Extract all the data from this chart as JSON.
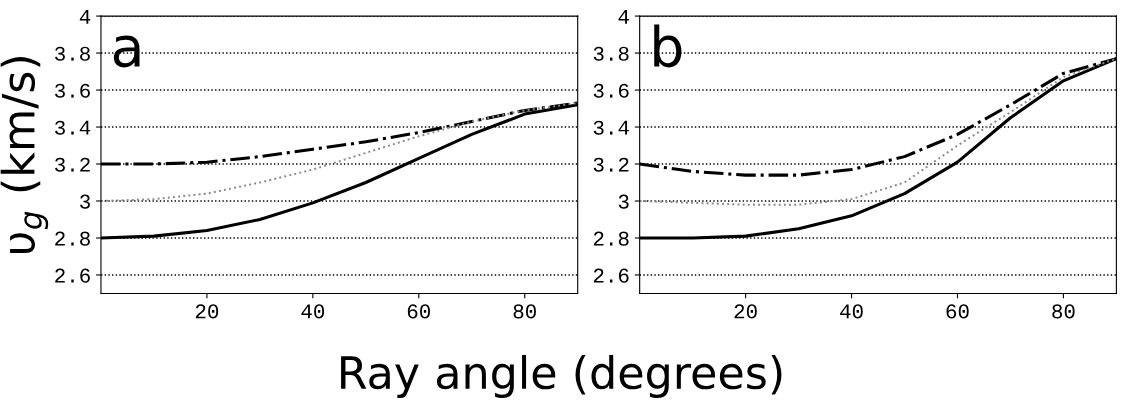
{
  "chart_data": [
    {
      "type": "line",
      "xlabel": "Ray angle (degrees)",
      "ylabel": "υ$_{g}$ (km/s)",
      "annotations": [
        "a"
      ],
      "x": [
        0,
        10,
        20,
        30,
        40,
        50,
        60,
        70,
        80,
        90
      ],
      "xlim": [
        0,
        90
      ],
      "xticks": [
        20,
        40,
        60,
        80
      ],
      "ylim": [
        2.5,
        4
      ],
      "yticks": [
        2.6,
        2.8,
        3,
        3.2,
        3.4,
        3.6,
        3.8,
        4
      ],
      "grid": "y",
      "marker": "none",
      "series": [
        {
          "color": "#000000",
          "line_style": "solid",
          "values": [
            2.8,
            2.81,
            2.84,
            2.9,
            2.99,
            3.1,
            3.23,
            3.36,
            3.47,
            3.52
          ]
        },
        {
          "color": "#000000",
          "line_style": "dashdot",
          "values": [
            3.2,
            3.2,
            3.21,
            3.24,
            3.28,
            3.32,
            3.37,
            3.43,
            3.49,
            3.53
          ]
        },
        {
          "color": "#888888",
          "line_style": "dotted",
          "values": [
            3.0,
            3.01,
            3.04,
            3.1,
            3.17,
            3.26,
            3.35,
            3.43,
            3.49,
            3.53
          ]
        }
      ]
    },
    {
      "type": "line",
      "annotations": [
        "b"
      ],
      "x": [
        0,
        10,
        20,
        30,
        40,
        50,
        60,
        70,
        80,
        90
      ],
      "xlim": [
        0,
        90
      ],
      "xticks": [
        20,
        40,
        60,
        80
      ],
      "ylim": [
        2.5,
        4
      ],
      "yticks": [
        2.6,
        2.8,
        3,
        3.2,
        3.4,
        3.6,
        3.8,
        4
      ],
      "grid": "y",
      "marker": "none",
      "series": [
        {
          "color": "#000000",
          "line_style": "solid",
          "values": [
            2.8,
            2.8,
            2.81,
            2.85,
            2.92,
            3.04,
            3.21,
            3.45,
            3.65,
            3.77
          ]
        },
        {
          "color": "#000000",
          "line_style": "dashdot",
          "values": [
            3.2,
            3.16,
            3.14,
            3.14,
            3.17,
            3.24,
            3.36,
            3.52,
            3.69,
            3.77
          ]
        },
        {
          "color": "#888888",
          "line_style": "dotted",
          "values": [
            3.0,
            2.99,
            2.98,
            2.98,
            3.01,
            3.1,
            3.3,
            3.48,
            3.67,
            3.77
          ]
        }
      ]
    }
  ]
}
